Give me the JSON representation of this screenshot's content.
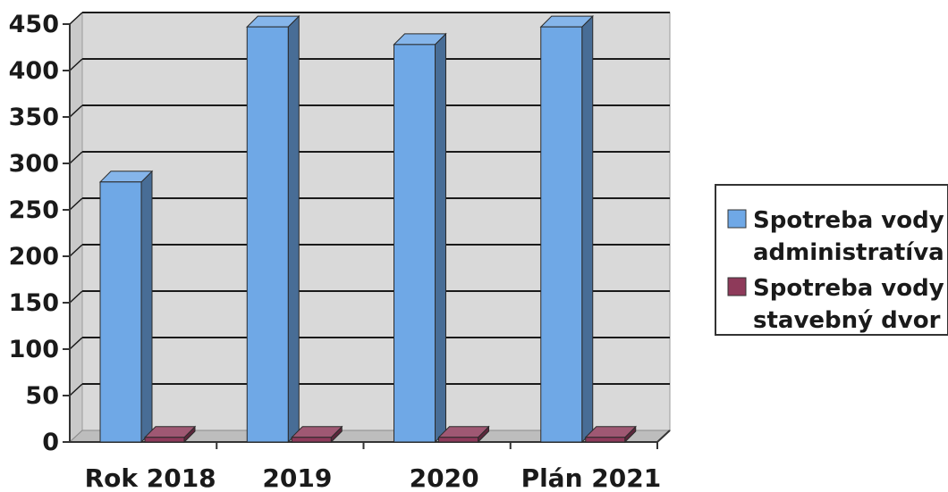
{
  "chart_data": {
    "type": "bar",
    "categories": [
      "Rok 2018",
      "2019",
      "2020",
      "Plán 2021"
    ],
    "series": [
      {
        "name": "Spotreba vody administratíva",
        "legend_lines": [
          "Spotreba vody",
          "administratíva"
        ],
        "values": [
          280,
          447,
          428,
          447
        ],
        "color": "#6fa8e6"
      },
      {
        "name": "Spotreba vody stavebný dvor",
        "legend_lines": [
          "Spotreba vody",
          "stavebný dvor"
        ],
        "values": [
          5,
          5,
          5,
          5
        ],
        "color": "#8e3a5a"
      }
    ],
    "yticks": [
      0,
      50,
      100,
      150,
      200,
      250,
      300,
      350,
      400,
      450
    ],
    "ylim": [
      0,
      450
    ],
    "grid": true,
    "three_d": true,
    "legend_position": "right",
    "title": "",
    "xlabel": "",
    "ylabel": ""
  }
}
